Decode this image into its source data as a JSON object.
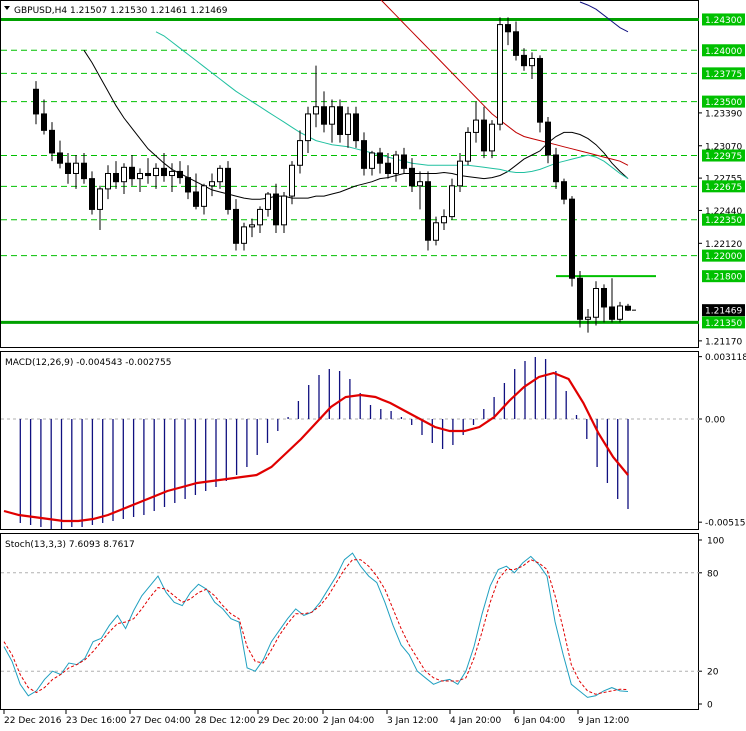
{
  "chart_data": [
    {
      "type": "candlestick",
      "pane": "price",
      "title": "GBPUSD,H4  1.21507 1.21530 1.21461 1.21469",
      "ylim": [
        1.2112,
        1.2447
      ],
      "y_tick_labels": [
        "1.24300",
        "1.24000",
        "1.23775",
        "1.23500",
        "1.23390",
        "1.23070",
        "1.22975",
        "1.22755",
        "1.22675",
        "1.22440",
        "1.22350",
        "1.22120",
        "1.22000",
        "1.21800",
        "1.21469",
        "1.21350",
        "1.21170"
      ],
      "current_price": "1.21469",
      "levels": [
        {
          "label": "1.24300",
          "value": 1.243,
          "color": "#00a000",
          "style": "solid-thick"
        },
        {
          "label": "1.24000",
          "value": 1.24,
          "color": "#00c000",
          "style": "dashed"
        },
        {
          "label": "1.23775",
          "value": 1.23775,
          "color": "#00c000",
          "style": "dashed"
        },
        {
          "label": "1.23500",
          "value": 1.235,
          "color": "#00c000",
          "style": "dashed"
        },
        {
          "label": "1.22975",
          "value": 1.22975,
          "color": "#00c000",
          "style": "dashed"
        },
        {
          "label": "1.22675",
          "value": 1.22675,
          "color": "#00c000",
          "style": "dashed"
        },
        {
          "label": "1.22350",
          "value": 1.2235,
          "color": "#00c000",
          "style": "dashed"
        },
        {
          "label": "1.22000",
          "value": 1.22,
          "color": "#00c000",
          "style": "dashed"
        },
        {
          "label": "1.21800",
          "value": 1.218,
          "color": "#00c000",
          "style": "short-solid"
        },
        {
          "label": "1.21350",
          "value": 1.2135,
          "color": "#00a000",
          "style": "solid-thick"
        }
      ],
      "candles": [
        [
          1.2362,
          1.237,
          1.2328,
          1.2338
        ],
        [
          1.2338,
          1.2352,
          1.2318,
          1.2322
        ],
        [
          1.2322,
          1.233,
          1.2292,
          1.23
        ],
        [
          1.23,
          1.2312,
          1.2285,
          1.229
        ],
        [
          1.229,
          1.23,
          1.227,
          1.228
        ],
        [
          1.228,
          1.2298,
          1.2265,
          1.229
        ],
        [
          1.229,
          1.23,
          1.227,
          1.2275
        ],
        [
          1.2275,
          1.2282,
          1.224,
          1.2245
        ],
        [
          1.2245,
          1.2268,
          1.2225,
          1.2265
        ],
        [
          1.2265,
          1.2288,
          1.2255,
          1.228
        ],
        [
          1.228,
          1.2292,
          1.2265,
          1.2272
        ],
        [
          1.2272,
          1.229,
          1.226,
          1.2286
        ],
        [
          1.2286,
          1.2298,
          1.2268,
          1.2275
        ],
        [
          1.2275,
          1.2285,
          1.2262,
          1.228
        ],
        [
          1.228,
          1.2295,
          1.227,
          1.2278
        ],
        [
          1.2278,
          1.229,
          1.2265,
          1.2285
        ],
        [
          1.2285,
          1.23,
          1.2272,
          1.2278
        ],
        [
          1.2278,
          1.229,
          1.2262,
          1.2282
        ],
        [
          1.2282,
          1.2292,
          1.227,
          1.2276
        ],
        [
          1.2276,
          1.2288,
          1.2255,
          1.2262
        ],
        [
          1.2262,
          1.228,
          1.2245,
          1.2248
        ],
        [
          1.2248,
          1.227,
          1.224,
          1.2268
        ],
        [
          1.2268,
          1.228,
          1.2258,
          1.2272
        ],
        [
          1.2272,
          1.2288,
          1.2265,
          1.2285
        ],
        [
          1.2285,
          1.2292,
          1.224,
          1.2245
        ],
        [
          1.2245,
          1.2255,
          1.2205,
          1.2212
        ],
        [
          1.2212,
          1.2232,
          1.2205,
          1.2228
        ],
        [
          1.2228,
          1.2236,
          1.2218,
          1.223
        ],
        [
          1.223,
          1.2248,
          1.2222,
          1.2245
        ],
        [
          1.2245,
          1.2262,
          1.2238,
          1.226
        ],
        [
          1.226,
          1.227,
          1.2222,
          1.223
        ],
        [
          1.223,
          1.2262,
          1.2222,
          1.2258
        ],
        [
          1.2258,
          1.2292,
          1.225,
          1.2288
        ],
        [
          1.2288,
          1.2322,
          1.228,
          1.2312
        ],
        [
          1.2312,
          1.2345,
          1.23,
          1.2338
        ],
        [
          1.2338,
          1.2385,
          1.2325,
          1.2345
        ],
        [
          1.2345,
          1.236,
          1.232,
          1.2328
        ],
        [
          1.2328,
          1.2352,
          1.231,
          1.2345
        ],
        [
          1.2345,
          1.2352,
          1.231,
          1.2318
        ],
        [
          1.2318,
          1.2345,
          1.2305,
          1.2338
        ],
        [
          1.2338,
          1.2345,
          1.2305,
          1.2312
        ],
        [
          1.2312,
          1.232,
          1.2278,
          1.2285
        ],
        [
          1.2285,
          1.2302,
          1.2278,
          1.23
        ],
        [
          1.23,
          1.2305,
          1.228,
          1.229
        ],
        [
          1.229,
          1.23,
          1.2275,
          1.228
        ],
        [
          1.228,
          1.2302,
          1.2272,
          1.2298
        ],
        [
          1.2298,
          1.2305,
          1.228,
          1.2285
        ],
        [
          1.2285,
          1.2295,
          1.2262,
          1.2268
        ],
        [
          1.2268,
          1.2282,
          1.2245,
          1.2272
        ],
        [
          1.2272,
          1.2282,
          1.2205,
          1.2215
        ],
        [
          1.2215,
          1.2238,
          1.221,
          1.2232
        ],
        [
          1.2232,
          1.2245,
          1.2225,
          1.2238
        ],
        [
          1.2238,
          1.2275,
          1.2235,
          1.2268
        ],
        [
          1.2268,
          1.23,
          1.2262,
          1.2292
        ],
        [
          1.2292,
          1.2325,
          1.2288,
          1.232
        ],
        [
          1.232,
          1.235,
          1.231,
          1.2332
        ],
        [
          1.2332,
          1.2345,
          1.2295,
          1.2302
        ],
        [
          1.2302,
          1.2332,
          1.2295,
          1.2328
        ],
        [
          1.2328,
          1.2432,
          1.2322,
          1.2425
        ],
        [
          1.2425,
          1.2432,
          1.2405,
          1.2418
        ],
        [
          1.2418,
          1.2428,
          1.239,
          1.2395
        ],
        [
          1.2395,
          1.2402,
          1.238,
          1.2385
        ],
        [
          1.2385,
          1.2398,
          1.2372,
          1.2392
        ],
        [
          1.2392,
          1.2395,
          1.232,
          1.233
        ],
        [
          1.233,
          1.2335,
          1.229,
          1.2298
        ],
        [
          1.2298,
          1.2305,
          1.2265,
          1.2272
        ],
        [
          1.2272,
          1.2275,
          1.225,
          1.2255
        ],
        [
          1.2255,
          1.2258,
          1.217,
          1.2178
        ],
        [
          1.2178,
          1.2185,
          1.213,
          1.2138
        ],
        [
          1.2138,
          1.2148,
          1.2125,
          1.214
        ],
        [
          1.214,
          1.2175,
          1.2132,
          1.2168
        ],
        [
          1.2168,
          1.2172,
          1.2135,
          1.215
        ],
        [
          1.215,
          1.2178,
          1.2135,
          1.2138
        ],
        [
          1.2138,
          1.2155,
          1.2135,
          1.2151
        ],
        [
          1.21507,
          1.2153,
          1.21461,
          1.21469
        ]
      ],
      "moving_averages": [
        {
          "color": "#000000",
          "values": [
            1.24,
            1.2388,
            1.2374,
            1.236,
            1.2346,
            1.2334,
            1.2324,
            1.2314,
            1.2304,
            1.2297,
            1.229,
            1.2284,
            1.228,
            1.2276,
            1.2272,
            1.2268,
            1.2264,
            1.2262,
            1.226,
            1.2258,
            1.2256,
            1.2255,
            1.2255,
            1.2256,
            1.2258,
            1.2258,
            1.2256,
            1.2256,
            1.2256,
            1.2258,
            1.2258,
            1.226,
            1.2262,
            1.2265,
            1.2268,
            1.227,
            1.2272,
            1.2275,
            1.2276,
            1.2278,
            1.228,
            1.228,
            1.228,
            1.228,
            1.228,
            1.2281,
            1.228,
            1.2278,
            1.2277,
            1.2276,
            1.2275,
            1.2276,
            1.2278,
            1.2282,
            1.2288,
            1.2294,
            1.2298,
            1.2302,
            1.231,
            1.2316,
            1.232,
            1.232,
            1.2318,
            1.2314,
            1.2308,
            1.23,
            1.229,
            1.2282,
            1.2275
          ]
        },
        {
          "color": "#20c0a0",
          "values": [
            1.2418,
            1.2414,
            1.2408,
            1.2402,
            1.2396,
            1.239,
            1.2384,
            1.2378,
            1.2372,
            1.2366,
            1.236,
            1.2355,
            1.235,
            1.2345,
            1.234,
            1.2335,
            1.233,
            1.2325,
            1.232,
            1.2316,
            1.2312,
            1.231,
            1.2308,
            1.2307,
            1.2306,
            1.2304,
            1.2302,
            1.23,
            1.2298,
            1.2296,
            1.2294,
            1.2292,
            1.229,
            1.2289,
            1.2288,
            1.2288,
            1.2288,
            1.2288,
            1.2288,
            1.2288,
            1.2287,
            1.2286,
            1.2285,
            1.2284,
            1.2282,
            1.2281,
            1.2281,
            1.2282,
            1.2284,
            1.2287,
            1.229,
            1.2292,
            1.2294,
            1.2296,
            1.2298,
            1.2296,
            1.2292,
            1.2286,
            1.228,
            1.2275
          ]
        },
        {
          "color": "#c00000",
          "values": [
            1.245,
            1.2442,
            1.2434,
            1.2426,
            1.2418,
            1.241,
            1.2402,
            1.2394,
            1.2386,
            1.2378,
            1.237,
            1.2362,
            1.2354,
            1.2346,
            1.2338,
            1.2332,
            1.2326,
            1.232,
            1.2316,
            1.2314,
            1.2312,
            1.231,
            1.2308,
            1.2306,
            1.2304,
            1.2302,
            1.23,
            1.2298,
            1.2296,
            1.2294,
            1.2292,
            1.2288
          ]
        },
        {
          "color": "#101080",
          "values": [
            1.2447,
            1.2444,
            1.244,
            1.2434,
            1.2428,
            1.2422,
            1.2418
          ]
        }
      ]
    },
    {
      "type": "histogram",
      "pane": "macd",
      "title": "MACD(12,26,9) -0.004543 -0.002755",
      "ylim": [
        -0.00545,
        0.0033
      ],
      "y_tick_labels": [
        "0.003118",
        "0.00",
        "-0.005159"
      ],
      "histogram": [
        -0.0052,
        -0.0053,
        -0.0054,
        -0.0055,
        -0.0055,
        -0.0054,
        -0.0054,
        -0.0053,
        -0.0052,
        -0.0051,
        -0.005,
        -0.0049,
        -0.0048,
        -0.0046,
        -0.0044,
        -0.0042,
        -0.004,
        -0.0038,
        -0.0036,
        -0.0034,
        -0.0031,
        -0.0028,
        -0.0024,
        -0.0018,
        -0.0012,
        -0.0006,
        0.0001,
        0.0009,
        0.0017,
        0.0022,
        0.0025,
        0.0024,
        0.002,
        0.0013,
        0.0007,
        0.0005,
        0.0004,
        0.0001,
        -0.0003,
        -0.0008,
        -0.0012,
        -0.0015,
        -0.0013,
        -0.0008,
        -0.0003,
        0.0005,
        0.0011,
        0.0018,
        0.0025,
        0.0029,
        0.0031,
        0.003,
        0.0024,
        0.0014,
        0.0002,
        -0.001,
        -0.0024,
        -0.0032,
        -0.004,
        -0.0045
      ],
      "signal": [
        -0.0046,
        -0.0048,
        -0.0049,
        -0.005,
        -0.0051,
        -0.0051,
        -0.005,
        -0.0048,
        -0.0045,
        -0.0042,
        -0.0039,
        -0.0036,
        -0.0034,
        -0.0032,
        -0.0031,
        -0.003,
        -0.0029,
        -0.0028,
        -0.0024,
        -0.0017,
        -0.001,
        -0.0002,
        0.0006,
        0.0011,
        0.0012,
        0.0011,
        0.0008,
        0.0004,
        0.0,
        -0.0004,
        -0.0006,
        -0.0006,
        -0.0004,
        0.0001,
        0.0009,
        0.0016,
        0.0021,
        0.0023,
        0.002,
        0.0008,
        -0.0007,
        -0.0019,
        -0.0028
      ],
      "signal_color": "#e00000",
      "histogram_color": "#101080"
    },
    {
      "type": "line",
      "pane": "stochastic",
      "title": "Stoch(13,3,3) 7.6093 8.7617",
      "ylim": [
        0,
        100
      ],
      "y_tick_labels": [
        "100",
        "80",
        "20",
        "0"
      ],
      "x_labels": [
        "22 Dec 2016",
        "23 Dec 16:00",
        "27 Dec 04:00",
        "28 Dec 12:00",
        "29 Dec 20:00",
        "2 Jan 04:00",
        "3 Jan 12:00",
        "4 Jan 20:00",
        "6 Jan 04:00",
        "9 Jan 12:00"
      ],
      "series": [
        {
          "color": "#20a0c0",
          "style": "solid",
          "values": [
            35,
            26,
            12,
            5,
            8,
            15,
            20,
            18,
            25,
            24,
            28,
            38,
            40,
            48,
            54,
            46,
            57,
            66,
            72,
            78,
            68,
            62,
            60,
            68,
            73,
            70,
            62,
            58,
            52,
            50,
            22,
            20,
            27,
            38,
            45,
            52,
            58,
            54,
            56,
            62,
            70,
            78,
            88,
            92,
            84,
            78,
            74,
            62,
            48,
            36,
            30,
            20,
            16,
            12,
            14,
            15,
            12,
            20,
            35,
            55,
            72,
            82,
            84,
            80,
            86,
            90,
            85,
            78,
            50,
            30,
            12,
            8,
            4,
            5,
            8,
            10,
            8,
            7.6
          ]
        },
        {
          "color": "#e00000",
          "style": "dashed",
          "values": [
            38,
            30,
            18,
            10,
            7,
            10,
            15,
            18,
            22,
            24,
            27,
            32,
            38,
            44,
            49,
            50,
            52,
            58,
            65,
            71,
            70,
            66,
            62,
            64,
            68,
            70,
            66,
            60,
            55,
            52,
            35,
            26,
            25,
            33,
            42,
            49,
            55,
            55,
            56,
            60,
            66,
            74,
            82,
            88,
            88,
            84,
            78,
            70,
            58,
            46,
            36,
            28,
            20,
            16,
            14,
            14,
            14,
            16,
            28,
            44,
            62,
            76,
            82,
            82,
            84,
            88,
            86,
            82,
            66,
            46,
            24,
            14,
            8,
            6,
            7,
            8,
            9,
            8.8
          ]
        }
      ],
      "levels": [
        80,
        20
      ]
    }
  ]
}
